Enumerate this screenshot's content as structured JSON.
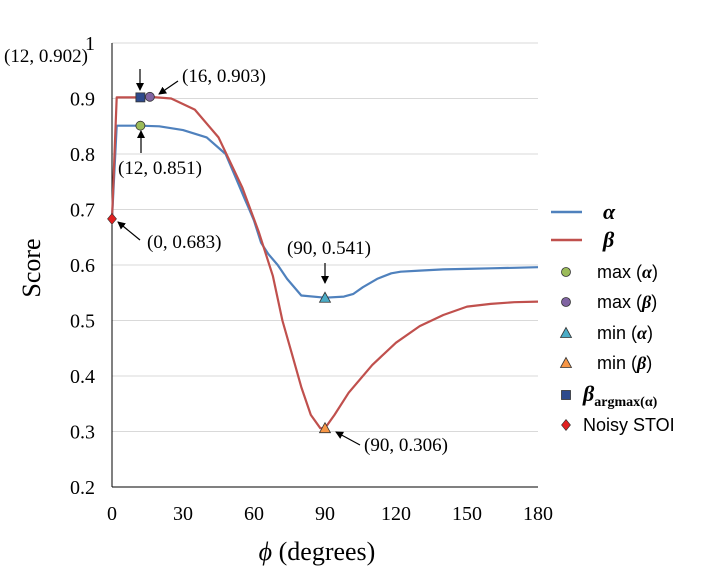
{
  "chart_data": {
    "type": "line",
    "xlabel": "ϕ (degrees)",
    "ylabel": "Score",
    "xlim": [
      0,
      180
    ],
    "ylim": [
      0.2,
      1
    ],
    "xticks": [
      0,
      30,
      60,
      90,
      120,
      150,
      180
    ],
    "yticks": [
      0.2,
      0.3,
      0.4,
      0.5,
      0.6,
      0.7,
      0.8,
      0.9,
      1
    ],
    "xtick_labels": [
      "0",
      "30",
      "60",
      "90",
      "120",
      "150",
      "180"
    ],
    "ytick_labels": [
      "0.2",
      "0.3",
      "0.4",
      "0.5",
      "0.6",
      "0.7",
      "0.8",
      "0.9",
      "1"
    ],
    "grid": "horizontal",
    "legend_placement": "right",
    "series": [
      {
        "name": "α",
        "color": "#4f81bd",
        "x": [
          0,
          2,
          12,
          20,
          30,
          40,
          48,
          52,
          56,
          58,
          60,
          63,
          66,
          70,
          74,
          80,
          90,
          98,
          102,
          106,
          112,
          118,
          122,
          130,
          140,
          150,
          160,
          170,
          180
        ],
        "y": [
          0.683,
          0.851,
          0.851,
          0.85,
          0.843,
          0.83,
          0.8,
          0.76,
          0.72,
          0.7,
          0.68,
          0.64,
          0.62,
          0.6,
          0.575,
          0.545,
          0.541,
          0.543,
          0.548,
          0.56,
          0.575,
          0.585,
          0.588,
          0.59,
          0.592,
          0.593,
          0.594,
          0.595,
          0.596
        ]
      },
      {
        "name": "β",
        "color": "#c0504d",
        "x": [
          0,
          2,
          12,
          16,
          25,
          35,
          45,
          55,
          62,
          68,
          72,
          76,
          80,
          84,
          88,
          90,
          94,
          100,
          110,
          120,
          130,
          140,
          150,
          160,
          170,
          180
        ],
        "y": [
          0.683,
          0.902,
          0.902,
          0.903,
          0.9,
          0.88,
          0.83,
          0.74,
          0.66,
          0.58,
          0.5,
          0.44,
          0.38,
          0.33,
          0.306,
          0.306,
          0.33,
          0.37,
          0.42,
          0.46,
          0.49,
          0.51,
          0.525,
          0.53,
          0.533,
          0.534
        ]
      }
    ],
    "markers": [
      {
        "name": "max (α)",
        "shape": "circle",
        "color": "#9bbb59",
        "x": 12,
        "y": 0.851,
        "label": "(12, 0.851)"
      },
      {
        "name": "max (β)",
        "shape": "circle",
        "color": "#8064a2",
        "x": 16,
        "y": 0.903,
        "label": "(16, 0.903)"
      },
      {
        "name": "min (α)",
        "shape": "triangle",
        "color": "#4bacc6",
        "x": 90,
        "y": 0.541,
        "label": "(90, 0.541)"
      },
      {
        "name": "min (β)",
        "shape": "triangle",
        "color": "#f79646",
        "x": 90,
        "y": 0.306,
        "label": "(90, 0.306)"
      },
      {
        "name": "β argmax(α)",
        "shape": "square",
        "color": "#2e4a8c",
        "x": 12,
        "y": 0.902,
        "label": "(12, 0.902)"
      },
      {
        "name": "Noisy STOI",
        "shape": "diamond",
        "color": "#e02020",
        "x": 0,
        "y": 0.683,
        "label": "(0, 0.683)"
      }
    ],
    "legend": [
      {
        "kind": "line",
        "text": "α",
        "bold": true,
        "color": "#4f81bd"
      },
      {
        "kind": "line",
        "text": "β",
        "bold": true,
        "color": "#c0504d"
      },
      {
        "kind": "marker",
        "shape": "circle",
        "color": "#9bbb59",
        "text": "max (",
        "sym": "α",
        "tail": ")"
      },
      {
        "kind": "marker",
        "shape": "circle",
        "color": "#8064a2",
        "text": "max (",
        "sym": "β",
        "tail": ")"
      },
      {
        "kind": "marker",
        "shape": "triangle",
        "color": "#4bacc6",
        "text": "min (",
        "sym": "α",
        "tail": ")"
      },
      {
        "kind": "marker",
        "shape": "triangle",
        "color": "#f79646",
        "text": "min (",
        "sym": "β",
        "tail": ")"
      },
      {
        "kind": "marker",
        "shape": "square",
        "color": "#2e4a8c",
        "text": "",
        "sym": "β",
        "sub": "argmax(α)"
      },
      {
        "kind": "marker",
        "shape": "diamond",
        "color": "#e02020",
        "text": "Noisy STOI"
      }
    ]
  }
}
